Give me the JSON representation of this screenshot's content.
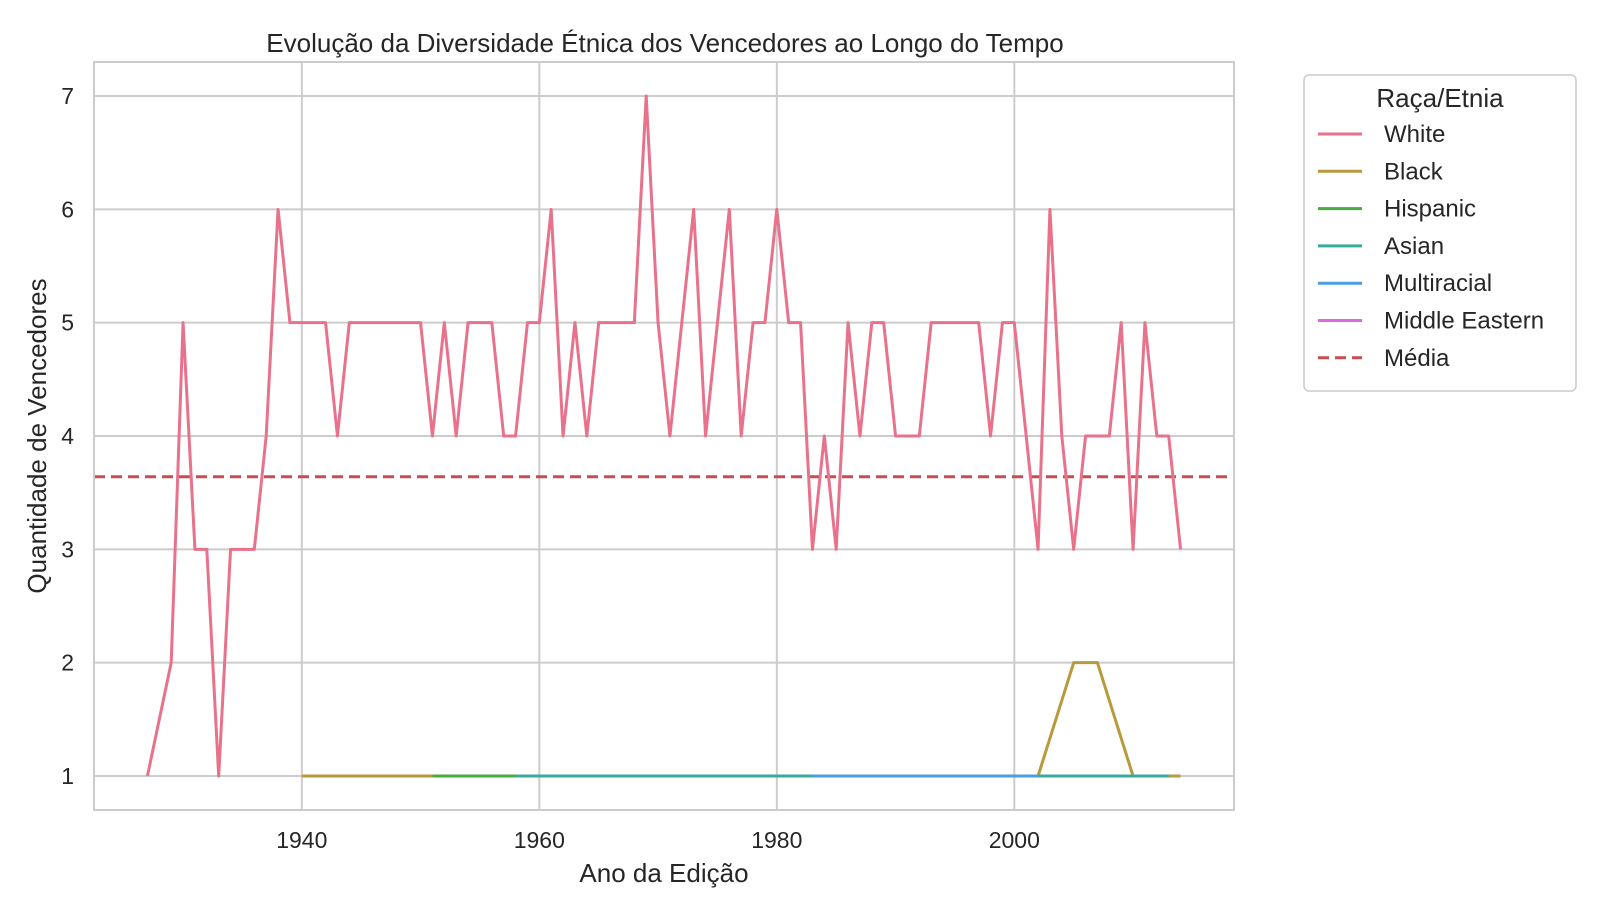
{
  "chart_data": {
    "type": "line",
    "title": "Evolução da Diversidade Étnica dos Vencedores ao Longo do Tempo",
    "xlabel": "Ano da Edição",
    "ylabel": "Quantidade de Vencedores",
    "xlim": [
      1922.5,
      2018.5
    ],
    "ylim": [
      0.7,
      7.3
    ],
    "xticks": [
      1940,
      1960,
      1980,
      2000
    ],
    "yticks": [
      1,
      2,
      3,
      4,
      5,
      6,
      7
    ],
    "grid": true,
    "legend_title": "Raça/Etnia",
    "legend_position": "outside-right",
    "series": [
      {
        "name": "White",
        "color": "#e8728c",
        "style": "solid",
        "x": [
          1927,
          1928,
          1929,
          1930,
          1931,
          1932,
          1933,
          1934,
          1935,
          1936,
          1937,
          1938,
          1939,
          1940,
          1941,
          1942,
          1943,
          1944,
          1945,
          1946,
          1947,
          1948,
          1949,
          1950,
          1951,
          1952,
          1953,
          1954,
          1955,
          1956,
          1957,
          1958,
          1959,
          1960,
          1961,
          1962,
          1963,
          1964,
          1965,
          1966,
          1967,
          1968,
          1969,
          1970,
          1971,
          1972,
          1973,
          1974,
          1975,
          1976,
          1977,
          1978,
          1979,
          1980,
          1981,
          1982,
          1983,
          1984,
          1985,
          1986,
          1987,
          1988,
          1989,
          1990,
          1991,
          1992,
          1993,
          1994,
          1995,
          1996,
          1997,
          1998,
          1999,
          2000,
          2001,
          2002,
          2003,
          2004,
          2005,
          2006,
          2007,
          2008,
          2009,
          2010,
          2011,
          2012,
          2013,
          2014
        ],
        "values": [
          1,
          1.5,
          2,
          5,
          3,
          3,
          1,
          3,
          3,
          3,
          4,
          6,
          5,
          5,
          5,
          5,
          4,
          5,
          5,
          5,
          5,
          5,
          5,
          5,
          4,
          5,
          4,
          5,
          5,
          5,
          4,
          4,
          5,
          5,
          6,
          4,
          5,
          4,
          5,
          5,
          5,
          5,
          7,
          5,
          4,
          5,
          6,
          4,
          5,
          6,
          4,
          5,
          5,
          6,
          5,
          5,
          3,
          4,
          3,
          5,
          4,
          5,
          5,
          4,
          4,
          4,
          5,
          5,
          5,
          5,
          5,
          4,
          5,
          5,
          4,
          3,
          6,
          4,
          3,
          4,
          4,
          4,
          5,
          3,
          5,
          4,
          4,
          3
        ]
      },
      {
        "name": "Black",
        "color": "#b99a3b",
        "style": "solid",
        "x": [
          1940,
          1950,
          2002,
          2005,
          2007,
          2010,
          2014
        ],
        "values": [
          1,
          1,
          1,
          2,
          2,
          1,
          1
        ]
      },
      {
        "name": "Hispanic",
        "color": "#4aab3f",
        "style": "solid",
        "x": [
          1951,
          1958
        ],
        "values": [
          1,
          1
        ]
      },
      {
        "name": "Asian",
        "color": "#3aa99f",
        "style": "solid",
        "x": [
          1958,
          1983,
          2002,
          2013
        ],
        "values": [
          1,
          1,
          1,
          1
        ]
      },
      {
        "name": "Multiracial",
        "color": "#4d9ee0",
        "style": "solid",
        "x": [
          1983,
          2002
        ],
        "values": [
          1,
          1
        ]
      },
      {
        "name": "Middle Eastern",
        "color": "#d96be2",
        "style": "solid",
        "x": [],
        "values": []
      },
      {
        "name": "Média",
        "color": "#c44e52",
        "style": "dashed",
        "x": [
          1922.5,
          2018.5
        ],
        "values": [
          3.64,
          3.64
        ]
      }
    ]
  },
  "colors": {
    "grid": "#cccccc",
    "frame": "#cccccc",
    "text": "#262626"
  }
}
